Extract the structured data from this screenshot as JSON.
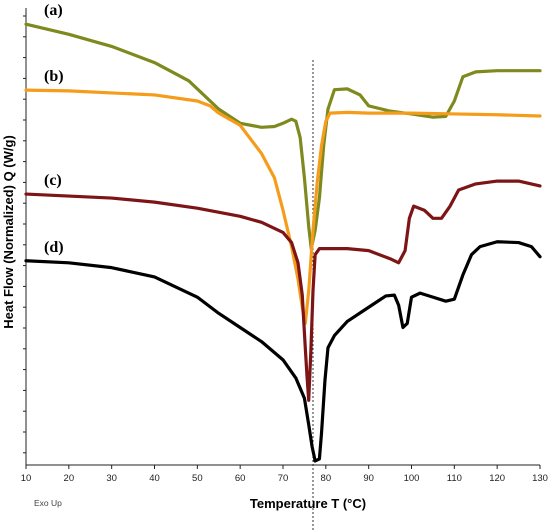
{
  "chart_data": {
    "type": "line",
    "xlabel": "Temperature T (°C)",
    "ylabel": "Heat Flow (Normalized) Q (W/g)",
    "xlim": [
      10,
      130
    ],
    "x_ticks": [
      10,
      20,
      30,
      40,
      50,
      60,
      70,
      80,
      90,
      100,
      110,
      120,
      130
    ],
    "y_scale": "arbitrary units (normalized), no tick labels",
    "annotation": "Exo Up",
    "reference_line_x": 77,
    "series": [
      {
        "name": "(a)",
        "color": "#7e8a1e",
        "points": [
          [
            10,
            10.6
          ],
          [
            20,
            10.35
          ],
          [
            30,
            10.05
          ],
          [
            40,
            9.65
          ],
          [
            48,
            9.2
          ],
          [
            55,
            8.5
          ],
          [
            60,
            8.15
          ],
          [
            65,
            8.05
          ],
          [
            68,
            8.07
          ],
          [
            70,
            8.15
          ],
          [
            72,
            8.25
          ],
          [
            73,
            8.2
          ],
          [
            74,
            7.8
          ],
          [
            75,
            6.8
          ],
          [
            76,
            5.6
          ],
          [
            76.6,
            5.05
          ],
          [
            77.5,
            5.5
          ],
          [
            78.5,
            6.3
          ],
          [
            79.5,
            7.6
          ],
          [
            80.5,
            8.5
          ],
          [
            82,
            8.98
          ],
          [
            85,
            9.0
          ],
          [
            88,
            8.85
          ],
          [
            90,
            8.58
          ],
          [
            95,
            8.45
          ],
          [
            100,
            8.38
          ],
          [
            105,
            8.3
          ],
          [
            108,
            8.32
          ],
          [
            110,
            8.7
          ],
          [
            112,
            9.3
          ],
          [
            115,
            9.42
          ],
          [
            120,
            9.45
          ],
          [
            125,
            9.45
          ],
          [
            130,
            9.45
          ]
        ]
      },
      {
        "name": "(b)",
        "color": "#f59c1a",
        "points": [
          [
            10,
            8.97
          ],
          [
            20,
            8.95
          ],
          [
            30,
            8.9
          ],
          [
            40,
            8.85
          ],
          [
            50,
            8.7
          ],
          [
            53,
            8.58
          ],
          [
            55,
            8.4
          ],
          [
            60,
            8.1
          ],
          [
            65,
            7.4
          ],
          [
            68,
            6.8
          ],
          [
            70,
            6.0
          ],
          [
            72,
            5.1
          ],
          [
            73.5,
            4.3
          ],
          [
            74.5,
            3.6
          ],
          [
            75.2,
            3.2
          ],
          [
            76,
            4.0
          ],
          [
            77,
            5.5
          ],
          [
            78,
            6.7
          ],
          [
            79,
            7.6
          ],
          [
            80,
            8.2
          ],
          [
            81,
            8.4
          ],
          [
            85,
            8.42
          ],
          [
            90,
            8.4
          ],
          [
            100,
            8.4
          ],
          [
            110,
            8.38
          ],
          [
            120,
            8.36
          ],
          [
            130,
            8.33
          ]
        ]
      },
      {
        "name": "(c)",
        "color": "#7d1517",
        "points": [
          [
            10,
            6.4
          ],
          [
            20,
            6.35
          ],
          [
            30,
            6.3
          ],
          [
            40,
            6.2
          ],
          [
            50,
            6.05
          ],
          [
            60,
            5.85
          ],
          [
            65,
            5.7
          ],
          [
            70,
            5.45
          ],
          [
            72,
            5.2
          ],
          [
            73.5,
            4.7
          ],
          [
            74.5,
            3.9
          ],
          [
            75.2,
            2.6
          ],
          [
            75.6,
            1.9
          ],
          [
            76,
            1.3
          ],
          [
            76.5,
            2.5
          ],
          [
            77,
            4.0
          ],
          [
            77.5,
            4.9
          ],
          [
            78.5,
            5.05
          ],
          [
            85,
            5.05
          ],
          [
            90,
            5.0
          ],
          [
            95,
            4.8
          ],
          [
            97,
            4.7
          ],
          [
            98.5,
            5.0
          ],
          [
            99.5,
            5.8
          ],
          [
            100.5,
            6.1
          ],
          [
            103,
            6.0
          ],
          [
            105,
            5.8
          ],
          [
            107,
            5.8
          ],
          [
            109,
            6.1
          ],
          [
            111,
            6.5
          ],
          [
            115,
            6.65
          ],
          [
            120,
            6.72
          ],
          [
            125,
            6.72
          ],
          [
            130,
            6.6
          ]
        ]
      },
      {
        "name": "(d)",
        "color": "#000000",
        "points": [
          [
            10,
            4.75
          ],
          [
            20,
            4.7
          ],
          [
            30,
            4.58
          ],
          [
            40,
            4.35
          ],
          [
            50,
            3.85
          ],
          [
            55,
            3.45
          ],
          [
            60,
            3.1
          ],
          [
            65,
            2.75
          ],
          [
            70,
            2.3
          ],
          [
            73,
            1.85
          ],
          [
            75,
            1.35
          ],
          [
            76,
            0.7
          ],
          [
            76.8,
            0.15
          ],
          [
            77.5,
            -0.2
          ],
          [
            78.5,
            -0.15
          ],
          [
            79,
            0.5
          ],
          [
            79.8,
            1.8
          ],
          [
            80.5,
            2.6
          ],
          [
            82,
            2.9
          ],
          [
            85,
            3.25
          ],
          [
            90,
            3.6
          ],
          [
            94,
            3.88
          ],
          [
            96,
            3.9
          ],
          [
            97,
            3.65
          ],
          [
            98,
            3.1
          ],
          [
            99,
            3.2
          ],
          [
            100,
            3.85
          ],
          [
            102,
            3.95
          ],
          [
            105,
            3.85
          ],
          [
            108,
            3.75
          ],
          [
            110,
            3.8
          ],
          [
            112,
            4.4
          ],
          [
            114,
            4.9
          ],
          [
            116,
            5.1
          ],
          [
            120,
            5.22
          ],
          [
            125,
            5.2
          ],
          [
            128,
            5.1
          ],
          [
            130,
            4.85
          ]
        ]
      }
    ]
  }
}
